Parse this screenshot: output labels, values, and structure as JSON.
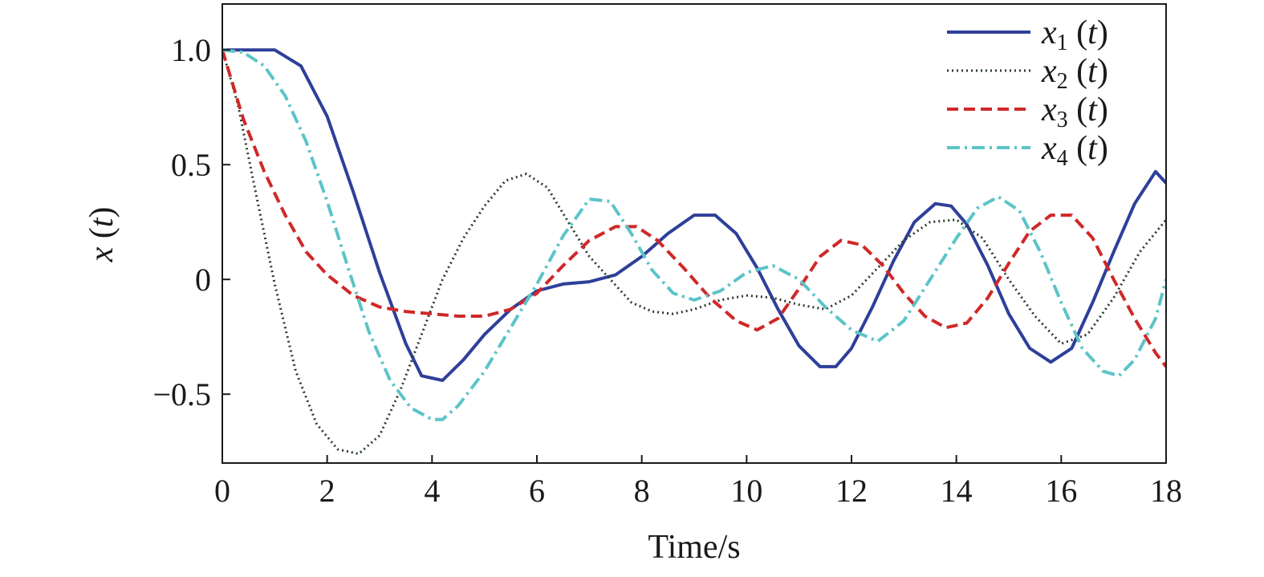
{
  "chart_data": {
    "type": "line",
    "title": "",
    "xlabel": "Time/s",
    "ylabel_var": "x",
    "ylabel_arg": "t",
    "xlim": [
      0,
      18
    ],
    "ylim": [
      -0.8,
      1.2
    ],
    "xticks": [
      0,
      2,
      4,
      6,
      8,
      10,
      12,
      14,
      16,
      18
    ],
    "xtick_labels": [
      "0",
      "2",
      "4",
      "6",
      "8",
      "10",
      "12",
      "14",
      "16",
      "18"
    ],
    "yticks": [
      -0.5,
      0,
      0.5,
      1.0
    ],
    "ytick_labels": [
      "−0.5",
      "0",
      "0.5",
      "1.0"
    ],
    "grid": false,
    "legend_position": "top-right",
    "series": [
      {
        "name": "x1 (t)",
        "legend_var": "x",
        "legend_sub": "1",
        "legend_arg": "t",
        "color": "#2e3f9a",
        "style": "solid",
        "x": [
          0,
          0.5,
          1.0,
          1.5,
          2.0,
          2.5,
          3.0,
          3.5,
          3.8,
          4.2,
          4.6,
          5.0,
          5.5,
          6.0,
          6.5,
          7.0,
          7.5,
          8.0,
          8.5,
          9.0,
          9.4,
          9.8,
          10.2,
          10.6,
          11.0,
          11.4,
          11.7,
          12.0,
          12.4,
          12.8,
          13.2,
          13.6,
          13.9,
          14.2,
          14.6,
          15.0,
          15.4,
          15.8,
          16.2,
          16.6,
          17.0,
          17.4,
          17.8,
          18.0
        ],
        "y": [
          1.0,
          1.0,
          1.0,
          0.93,
          0.71,
          0.38,
          0.03,
          -0.28,
          -0.42,
          -0.44,
          -0.35,
          -0.24,
          -0.13,
          -0.05,
          -0.02,
          -0.01,
          0.02,
          0.1,
          0.2,
          0.28,
          0.28,
          0.2,
          0.05,
          -0.13,
          -0.29,
          -0.38,
          -0.38,
          -0.3,
          -0.12,
          0.08,
          0.25,
          0.33,
          0.32,
          0.24,
          0.06,
          -0.15,
          -0.3,
          -0.36,
          -0.3,
          -0.1,
          0.12,
          0.33,
          0.47,
          0.42
        ]
      },
      {
        "name": "x2 (t)",
        "legend_var": "x",
        "legend_sub": "2",
        "legend_arg": "t",
        "color": "#2a3a2a",
        "style": "dotted",
        "x": [
          0,
          0.3,
          0.6,
          1.0,
          1.4,
          1.8,
          2.2,
          2.6,
          3.0,
          3.4,
          3.8,
          4.2,
          4.6,
          5.0,
          5.4,
          5.8,
          6.2,
          6.6,
          7.0,
          7.4,
          7.8,
          8.2,
          8.6,
          9.0,
          9.5,
          10.0,
          10.5,
          11.0,
          11.5,
          12.0,
          12.5,
          13.0,
          13.5,
          14.0,
          14.5,
          15.0,
          15.5,
          16.0,
          16.5,
          17.0,
          17.5,
          18.0
        ],
        "y": [
          1.0,
          0.76,
          0.42,
          -0.02,
          -0.4,
          -0.63,
          -0.74,
          -0.76,
          -0.68,
          -0.48,
          -0.24,
          0.0,
          0.18,
          0.32,
          0.43,
          0.46,
          0.4,
          0.25,
          0.1,
          0.0,
          -0.1,
          -0.14,
          -0.15,
          -0.13,
          -0.09,
          -0.07,
          -0.08,
          -0.11,
          -0.13,
          -0.07,
          0.05,
          0.17,
          0.25,
          0.26,
          0.18,
          0.0,
          -0.16,
          -0.28,
          -0.24,
          -0.08,
          0.12,
          0.26
        ]
      },
      {
        "name": "x3 (t)",
        "legend_var": "x",
        "legend_sub": "3",
        "legend_arg": "t",
        "color": "#d02828",
        "style": "dashed",
        "x": [
          0,
          0.4,
          0.8,
          1.2,
          1.6,
          2.0,
          2.5,
          3.0,
          3.5,
          4.0,
          4.5,
          5.0,
          5.5,
          6.0,
          6.5,
          7.0,
          7.5,
          7.9,
          8.3,
          8.8,
          9.3,
          9.8,
          10.2,
          10.6,
          11.0,
          11.4,
          11.8,
          12.2,
          12.6,
          13.0,
          13.4,
          13.8,
          14.2,
          14.6,
          15.0,
          15.4,
          15.8,
          16.2,
          16.6,
          17.0,
          17.4,
          17.8,
          18.0
        ],
        "y": [
          1.0,
          0.7,
          0.47,
          0.28,
          0.12,
          0.02,
          -0.07,
          -0.12,
          -0.14,
          -0.15,
          -0.16,
          -0.16,
          -0.13,
          -0.06,
          0.06,
          0.17,
          0.23,
          0.23,
          0.17,
          0.05,
          -0.08,
          -0.18,
          -0.22,
          -0.17,
          -0.04,
          0.1,
          0.17,
          0.15,
          0.06,
          -0.06,
          -0.16,
          -0.21,
          -0.19,
          -0.08,
          0.07,
          0.21,
          0.28,
          0.28,
          0.18,
          0.0,
          -0.17,
          -0.32,
          -0.38
        ]
      },
      {
        "name": "x4 (t)",
        "legend_var": "x",
        "legend_sub": "4",
        "legend_arg": "t",
        "color": "#5cc4c8",
        "style": "dashdot",
        "x": [
          0,
          0.4,
          0.8,
          1.2,
          1.6,
          2.0,
          2.4,
          2.8,
          3.2,
          3.6,
          4.0,
          4.2,
          4.5,
          5.0,
          5.5,
          6.0,
          6.5,
          7.0,
          7.4,
          7.8,
          8.2,
          8.6,
          9.0,
          9.5,
          10.0,
          10.5,
          11.0,
          11.5,
          12.0,
          12.5,
          13.0,
          13.5,
          14.0,
          14.4,
          14.8,
          15.2,
          15.6,
          16.0,
          16.4,
          16.8,
          17.1,
          17.4,
          17.8,
          18.0
        ],
        "y": [
          1.0,
          0.99,
          0.93,
          0.8,
          0.6,
          0.34,
          0.05,
          -0.23,
          -0.44,
          -0.56,
          -0.61,
          -0.61,
          -0.55,
          -0.4,
          -0.21,
          -0.02,
          0.19,
          0.35,
          0.34,
          0.2,
          0.04,
          -0.06,
          -0.09,
          -0.05,
          0.03,
          0.06,
          0.0,
          -0.12,
          -0.22,
          -0.27,
          -0.18,
          0.0,
          0.18,
          0.31,
          0.36,
          0.3,
          0.12,
          -0.1,
          -0.3,
          -0.4,
          -0.42,
          -0.35,
          -0.17,
          0.0
        ]
      }
    ]
  }
}
